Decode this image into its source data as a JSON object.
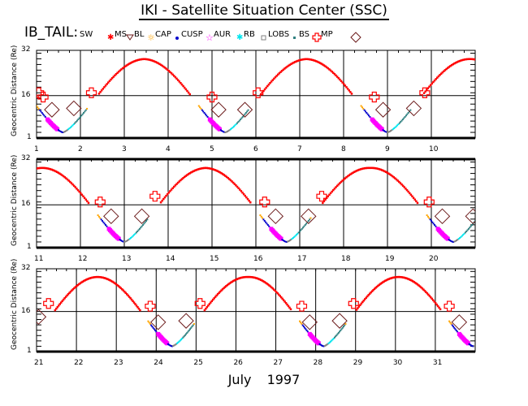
{
  "header": {
    "title": "IKI - Satellite Situation Center (SSC)",
    "spacecraft_label": "IB_TAIL:"
  },
  "legend": [
    {
      "key": "SW",
      "label": "SW",
      "symbol": "none",
      "color": "#000000"
    },
    {
      "key": "MS",
      "label": "MS",
      "symbol": "asterisk",
      "color": "#ff0000"
    },
    {
      "key": "BL",
      "label": "BL",
      "symbol": "triangle-down",
      "color": "#6b1a1a"
    },
    {
      "key": "CAP",
      "label": "CAP",
      "symbol": "sun",
      "color": "#ffa500"
    },
    {
      "key": "CUSP",
      "label": "CUSP",
      "symbol": "dot",
      "color": "#0000cc"
    },
    {
      "key": "AUR",
      "label": "AUR",
      "symbol": "star",
      "color": "#ff00ff"
    },
    {
      "key": "RB",
      "label": "RB",
      "symbol": "asterisk",
      "color": "#00e5ee"
    },
    {
      "key": "LOBS",
      "label": "LOBS",
      "symbol": "square",
      "color": "#808080"
    },
    {
      "key": "BS",
      "label": "BS",
      "symbol": "small-square",
      "color": "#2f8080"
    },
    {
      "key": "MP",
      "label": "MP",
      "symbol": "cross",
      "color": "#ff0000"
    },
    {
      "key": "DIAMOND",
      "label": "",
      "symbol": "diamond",
      "color": "#6b1a1a"
    }
  ],
  "chart_data": [
    {
      "type": "line",
      "title": "IKI - Satellite Situation Center (SSC)",
      "ylabel": "Geocentric Distance (Re)",
      "xlabel": "July 1997",
      "xlim": [
        1,
        11
      ],
      "ylim": [
        1,
        32
      ],
      "y_ticks": [
        "1",
        "16",
        "32"
      ],
      "x_ticks": [
        "1",
        "2",
        "3",
        "4",
        "5",
        "6",
        "7",
        "8",
        "9",
        "10"
      ],
      "grid": true,
      "orbit_period_days": 3.7,
      "perigee_days": [
        1.6,
        5.3,
        9.0
      ],
      "apogee_days": [
        3.5,
        7.2,
        10.9
      ],
      "apogee_re": 29,
      "perigee_re": 3,
      "mp_crossings": [
        [
          1.05,
          17
        ],
        [
          1.15,
          15.5
        ],
        [
          2.25,
          17
        ],
        [
          5.0,
          15.5
        ],
        [
          6.05,
          17
        ],
        [
          8.7,
          15.5
        ],
        [
          9.85,
          17
        ]
      ],
      "diamonds": [
        [
          1.35,
          11
        ],
        [
          1.85,
          11.5
        ],
        [
          5.15,
          11
        ],
        [
          5.75,
          11
        ],
        [
          8.9,
          11
        ],
        [
          9.6,
          11.5
        ]
      ]
    },
    {
      "type": "line",
      "ylabel": "Geocentric Distance (Re)",
      "xlim": [
        11,
        21
      ],
      "ylim": [
        1,
        32
      ],
      "y_ticks": [
        "1",
        "16",
        "32"
      ],
      "x_ticks": [
        "11",
        "12",
        "13",
        "14",
        "15",
        "16",
        "17",
        "18",
        "19",
        "20"
      ],
      "grid": true,
      "perigee_days": [
        13.0,
        16.7,
        20.5
      ],
      "apogee_days": [
        11.1,
        14.8,
        18.6
      ],
      "apogee_re": 29,
      "perigee_re": 3,
      "mp_crossings": [
        [
          12.45,
          17
        ],
        [
          13.7,
          19
        ],
        [
          16.2,
          17
        ],
        [
          17.5,
          19
        ],
        [
          19.95,
          17
        ]
      ],
      "diamonds": [
        [
          12.7,
          12
        ],
        [
          13.4,
          12
        ],
        [
          16.45,
          12
        ],
        [
          17.2,
          12
        ],
        [
          20.25,
          12
        ],
        [
          20.95,
          12
        ]
      ]
    },
    {
      "type": "line",
      "ylabel": "Geocentric Distance (Re)",
      "xlim": [
        21,
        32
      ],
      "ylim": [
        1,
        32
      ],
      "y_ticks": [
        "1",
        "16",
        "32"
      ],
      "x_ticks": [
        "21",
        "22",
        "23",
        "24",
        "25",
        "26",
        "27",
        "28",
        "29",
        "30",
        "31"
      ],
      "grid": true,
      "perigee_days": [
        24.4,
        28.2,
        31.95
      ],
      "apogee_days": [
        22.5,
        26.3,
        30.1
      ],
      "apogee_re": 29,
      "perigee_re": 3,
      "mp_crossings": [
        [
          21.3,
          19
        ],
        [
          23.85,
          18
        ],
        [
          25.1,
          19
        ],
        [
          27.65,
          18
        ],
        [
          28.95,
          19
        ],
        [
          31.35,
          18
        ]
      ],
      "diamonds": [
        [
          21.05,
          14
        ],
        [
          24.05,
          12
        ],
        [
          24.75,
          12.5
        ],
        [
          27.85,
          12
        ],
        [
          28.6,
          12.5
        ],
        [
          31.6,
          12
        ]
      ]
    }
  ]
}
